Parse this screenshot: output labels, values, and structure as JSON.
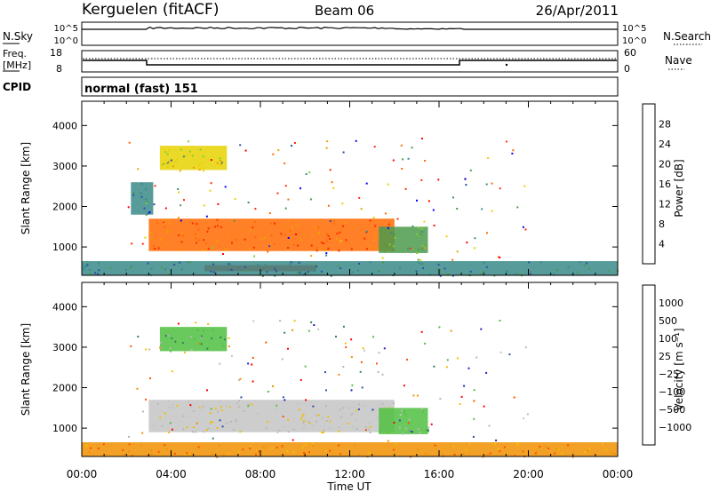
{
  "header": {
    "station": "Kerguelen (fitACF)",
    "beam": "Beam 06",
    "date": "26/Apr/2011",
    "cpid": "normal (fast) 151"
  },
  "strips": {
    "nsky_label": "N.Sky",
    "nsky_ticks": [
      "10^5",
      "10^0"
    ],
    "nsearch_label": "N.Search",
    "nsearch_ticks": [
      "10^5",
      "10^0"
    ],
    "freq_label_1": "Freq.",
    "freq_label_2": "[MHz]",
    "freq_ticks": [
      "18",
      "8"
    ],
    "cpid_label": "CPID",
    "nave_label": "Nave",
    "nave_ticks": [
      "60",
      "0"
    ]
  },
  "colors": {
    "power": [
      "#0000ff",
      "#2e4fa8",
      "#3a8a8a",
      "#4c9a4c",
      "#7fd12e",
      "#e6d200",
      "#f0a000",
      "#ff6a00",
      "#ff2a00",
      "#ff0000"
    ],
    "velocity": [
      "#2020c0",
      "#3050b0",
      "#308060",
      "#50c040",
      "#b8b8b8",
      "#c4c4c4",
      "#f0c000",
      "#f09000",
      "#ff5000",
      "#ff0000"
    ],
    "ground_grey": "#b4b4b4"
  },
  "chart_data": [
    {
      "type": "heatmap",
      "panel": "power",
      "xlabel": "Time UT",
      "ylabel": "Slant Range [km]",
      "xlim": [
        "00:00",
        "24:00"
      ],
      "ylim": [
        300,
        4600
      ],
      "x_ticks": [
        "00:00",
        "04:00",
        "08:00",
        "12:00",
        "16:00",
        "20:00",
        "00:00"
      ],
      "y_ticks": [
        1000,
        2000,
        3000,
        4000
      ],
      "colorbar_label": "Power [dB]",
      "colorbar_ticks": [
        "4",
        "8",
        "12",
        "16",
        "20",
        "24",
        "28"
      ],
      "colorbar_range": [
        0,
        32
      ],
      "regions": [
        {
          "t0": 3.0,
          "t1": 14.0,
          "r0": 900,
          "r1": 1700,
          "value": 26
        },
        {
          "t0": 13.3,
          "t1": 15.5,
          "r0": 850,
          "r1": 1500,
          "value": 10
        },
        {
          "t0": 5.5,
          "t1": 10.5,
          "r0": 400,
          "r1": 550,
          "value": 27
        },
        {
          "t0": 3.5,
          "t1": 6.5,
          "r0": 2900,
          "r1": 3500,
          "value": 18
        },
        {
          "t0": 2.2,
          "t1": 3.2,
          "r0": 1800,
          "r1": 2600,
          "value": 8
        },
        {
          "t0": 0.0,
          "t1": 24.0,
          "r0": 300,
          "r1": 650,
          "value": 6
        }
      ]
    },
    {
      "type": "heatmap",
      "panel": "velocity",
      "xlabel": "Time UT",
      "ylabel": "Slant Range [km]",
      "xlim": [
        "00:00",
        "24:00"
      ],
      "ylim": [
        300,
        4600
      ],
      "x_ticks": [
        "00:00",
        "04:00",
        "08:00",
        "12:00",
        "16:00",
        "20:00",
        "00:00"
      ],
      "y_ticks": [
        1000,
        2000,
        3000,
        4000
      ],
      "colorbar_label": "Velocity [m s⁻¹]",
      "colorbar_ticks": [
        "1000",
        "500",
        "100",
        "25",
        "−25",
        "−100",
        "−500",
        "−1000"
      ],
      "regions": [
        {
          "t0": 3.0,
          "t1": 14.0,
          "r0": 900,
          "r1": 1700,
          "value": 0
        },
        {
          "t0": 13.3,
          "t1": 15.5,
          "r0": 850,
          "r1": 1500,
          "value": 100
        },
        {
          "t0": 3.5,
          "t1": 6.5,
          "r0": 2900,
          "r1": 3500,
          "value": 100
        },
        {
          "t0": 0.0,
          "t1": 24.0,
          "r0": 300,
          "r1": 650,
          "value": -100
        }
      ]
    }
  ]
}
